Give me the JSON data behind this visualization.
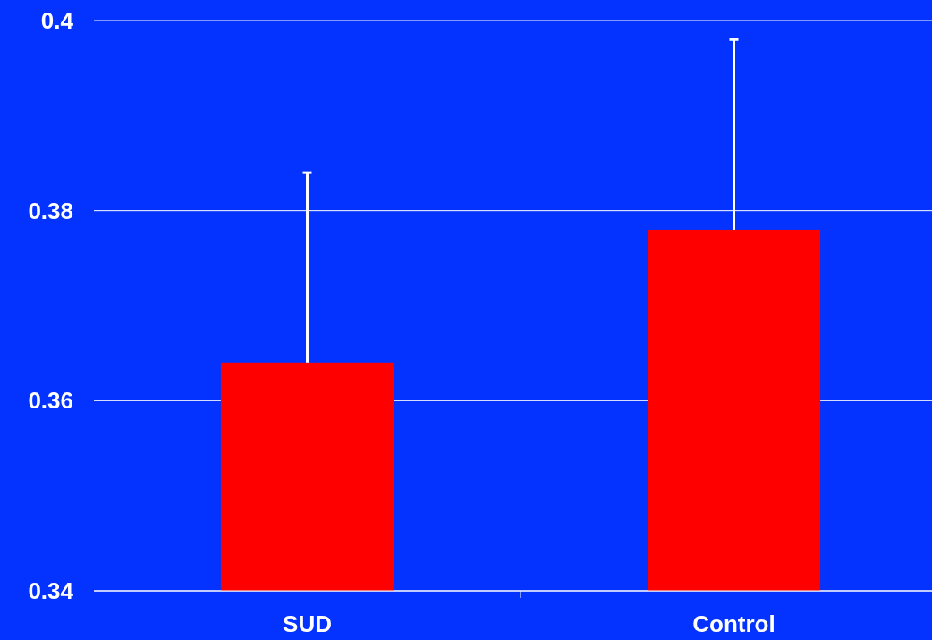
{
  "chart_data": {
    "type": "bar",
    "categories": [
      "SUD",
      "Control"
    ],
    "values": [
      0.364,
      0.378
    ],
    "color": "#ff0000",
    "errors": [
      [
        0.364,
        0.384
      ],
      [
        0.378,
        0.398
      ]
    ],
    "ylim": [
      0.34,
      0.4
    ],
    "yticks": [
      0.34,
      0.36,
      0.38,
      0.4
    ],
    "grid": "y"
  }
}
